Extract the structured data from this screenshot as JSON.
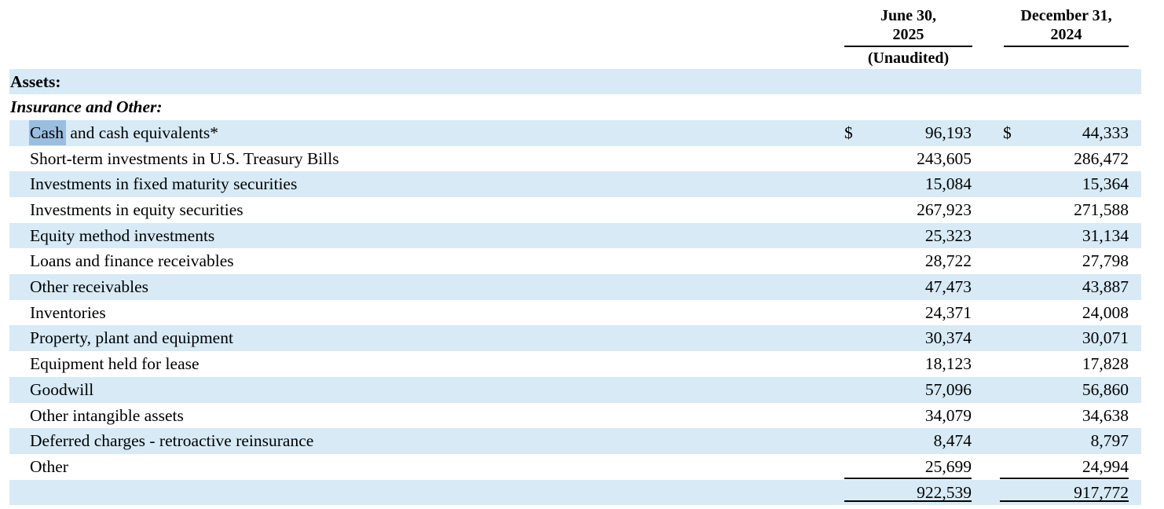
{
  "meta": {
    "stripe_color": "#d7eaf6",
    "selection_color": "#9abedf",
    "currency_symbol": "$"
  },
  "header": {
    "col1": {
      "line1": "June 30,",
      "line2": "2025",
      "note": "(Unaudited)"
    },
    "col2": {
      "line1": "December 31,",
      "line2": "2024"
    }
  },
  "table": {
    "rows": [
      {
        "style": "section",
        "label": "Assets:"
      },
      {
        "style": "section-italic",
        "label": "Insurance and Other:"
      },
      {
        "style": "item",
        "label_highlight": "Cash",
        "label": " and cash equivalents*",
        "dollar": true,
        "v1": "96,193",
        "v2": "44,333"
      },
      {
        "style": "item",
        "label": "Short-term investments in U.S. Treasury Bills",
        "v1": "243,605",
        "v2": "286,472"
      },
      {
        "style": "item",
        "label": "Investments in fixed maturity securities",
        "v1": "15,084",
        "v2": "15,364"
      },
      {
        "style": "item",
        "label": "Investments in equity securities",
        "v1": "267,923",
        "v2": "271,588"
      },
      {
        "style": "item",
        "label": "Equity method investments",
        "v1": "25,323",
        "v2": "31,134"
      },
      {
        "style": "item",
        "label": "Loans and finance receivables",
        "v1": "28,722",
        "v2": "27,798"
      },
      {
        "style": "item",
        "label": "Other receivables",
        "v1": "47,473",
        "v2": "43,887"
      },
      {
        "style": "item",
        "label": "Inventories",
        "v1": "24,371",
        "v2": "24,008"
      },
      {
        "style": "item",
        "label": "Property, plant and equipment",
        "v1": "30,374",
        "v2": "30,071"
      },
      {
        "style": "item",
        "label": "Equipment held for lease",
        "v1": "18,123",
        "v2": "17,828"
      },
      {
        "style": "item",
        "label": "Goodwill",
        "v1": "57,096",
        "v2": "56,860"
      },
      {
        "style": "item",
        "label": "Other intangible assets",
        "v1": "34,079",
        "v2": "34,638"
      },
      {
        "style": "item",
        "label": "Deferred charges - retroactive reinsurance",
        "v1": "8,474",
        "v2": "8,797"
      },
      {
        "style": "item",
        "label": "Other",
        "v1": "25,699",
        "v2": "24,994",
        "underline_values": true
      },
      {
        "style": "total",
        "v1": "922,539",
        "v2": "917,772",
        "underline_values": true
      }
    ]
  }
}
